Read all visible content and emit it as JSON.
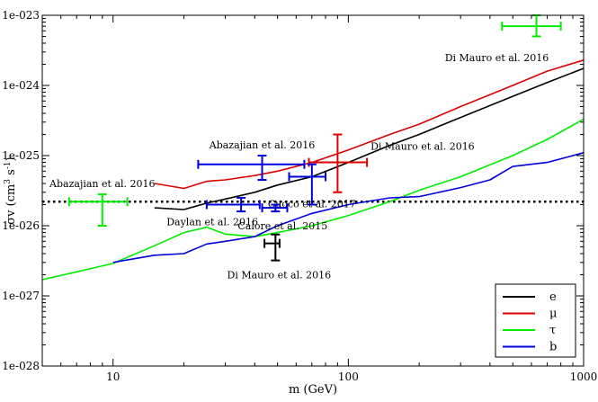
{
  "chart_data": {
    "type": "line",
    "title": "",
    "xlabel": "m (GeV)",
    "ylabel": "σv (cm³ s⁻¹)",
    "ylabel_parts": {
      "main": "σv (cm",
      "exp1": "3",
      "mid": " s",
      "exp2": "-1",
      "end": ")"
    },
    "xscale": "log",
    "yscale": "log",
    "xlim": [
      5,
      1000
    ],
    "ylim": [
      1e-28,
      1e-23
    ],
    "x_ticks": [
      {
        "value": 10,
        "label": "10"
      },
      {
        "value": 100,
        "label": "100"
      },
      {
        "value": 1000,
        "label": "1000"
      }
    ],
    "y_ticks": [
      {
        "value": 1e-28,
        "label": "1e-028"
      },
      {
        "value": 1e-27,
        "label": "1e-027"
      },
      {
        "value": 1e-26,
        "label": "1e-026"
      },
      {
        "value": 1e-25,
        "label": "1e-025"
      },
      {
        "value": 1e-24,
        "label": "1e-024"
      },
      {
        "value": 1e-23,
        "label": "1e-023"
      }
    ],
    "reference_line": {
      "y": 2.2e-26,
      "style": "dotted",
      "color": "#000000"
    },
    "legend_position": "bottom-right",
    "series": [
      {
        "name": "e",
        "color": "#000000",
        "x": [
          15,
          20,
          25,
          30,
          40,
          50,
          70,
          100,
          150,
          200,
          300,
          500,
          700,
          1000
        ],
        "y": [
          1.8e-26,
          1.7e-26,
          2.1e-26,
          2.4e-26,
          3e-26,
          3.8e-26,
          5e-26,
          8e-26,
          1.4e-25,
          2e-25,
          3.5e-25,
          7e-25,
          1.1e-24,
          1.75e-24
        ]
      },
      {
        "name": "μ",
        "color": "#dd0000",
        "x": [
          15,
          20,
          25,
          30,
          40,
          50,
          70,
          100,
          150,
          200,
          300,
          500,
          700,
          1000
        ],
        "y": [
          4e-26,
          3.4e-26,
          4.3e-26,
          4.5e-26,
          5.2e-26,
          6e-26,
          8e-26,
          1.2e-25,
          2e-25,
          2.8e-25,
          5e-25,
          1e-24,
          1.6e-24,
          2.3e-24
        ]
      },
      {
        "name": "τ",
        "color": "#00ee00",
        "x": [
          5,
          7,
          10,
          15,
          20,
          25,
          30,
          40,
          50,
          70,
          100,
          150,
          200,
          300,
          500,
          700,
          1000
        ],
        "y": [
          1.7e-27,
          2.2e-27,
          2.9e-27,
          5.2e-27,
          8e-27,
          9.5e-27,
          7.6e-27,
          7e-27,
          8e-27,
          1e-26,
          1.4e-26,
          2.2e-26,
          3.2e-26,
          5e-26,
          1e-25,
          1.7e-25,
          3.3e-25
        ]
      },
      {
        "name": "b",
        "color": "#0000dd",
        "x": [
          10,
          15,
          20,
          25,
          30,
          40,
          50,
          70,
          100,
          150,
          200,
          300,
          400,
          500,
          700,
          1000
        ],
        "y": [
          3e-27,
          3.8e-27,
          4e-27,
          5.5e-27,
          6e-27,
          7e-27,
          1e-26,
          1.5e-26,
          2e-26,
          2.5e-26,
          2.6e-26,
          3.5e-26,
          4.5e-26,
          7e-26,
          8e-26,
          1.1e-25
        ]
      }
    ],
    "data_points": [
      {
        "label": "Di Mauro et al. 2016",
        "color": "#00ee00",
        "x": 630,
        "y": 7e-24,
        "x_err": [
          450,
          800
        ],
        "y_err": [
          5e-24,
          1e-23
        ],
        "label_anchor": "below-left"
      },
      {
        "label": "Abazajian et al. 2016",
        "color": "#0000dd",
        "x": 43,
        "y": 7.5e-26,
        "x_err": [
          23,
          65
        ],
        "y_err": [
          4.5e-26,
          1e-25
        ],
        "label_anchor": "above"
      },
      {
        "label": "Di Mauro et al. 2016",
        "color": "#dd0000",
        "x": 90,
        "y": 8e-26,
        "x_err": [
          68,
          120
        ],
        "y_err": [
          3e-26,
          2e-25
        ],
        "label_anchor": "right"
      },
      {
        "label": "Cuoco et al. 2017",
        "color": "#0000dd",
        "x": 70,
        "y": 5e-26,
        "x_err": [
          56,
          80
        ],
        "y_err": [
          2e-26,
          7.5e-26
        ],
        "label_anchor": "below"
      },
      {
        "label": "Abazajian et al. 2016",
        "color": "#00ee00",
        "x": 9,
        "y": 2.2e-26,
        "x_err": [
          6.5,
          11.5
        ],
        "y_err": [
          1e-26,
          2.8e-26
        ],
        "label_anchor": "above"
      },
      {
        "label": "Daylan et al. 2016",
        "color": "#0000dd",
        "x": 35,
        "y": 2e-26,
        "x_err": [
          25,
          42
        ],
        "y_err": [
          1.6e-26,
          2.5e-26
        ],
        "label_anchor": "below-left"
      },
      {
        "label": "Calore et al. 2015",
        "color": "#0000dd",
        "x": 49,
        "y": 1.8e-26,
        "x_err": [
          43,
          55
        ],
        "y_err": [
          1.6e-26,
          2e-26
        ],
        "label_anchor": "below"
      },
      {
        "label": "Di Mauro et al. 2016",
        "color": "#000000",
        "x": 49,
        "y": 5.6e-27,
        "x_err": [
          44,
          51
        ],
        "y_err": [
          3.2e-27,
          7.5e-27
        ],
        "label_anchor": "below"
      }
    ]
  }
}
